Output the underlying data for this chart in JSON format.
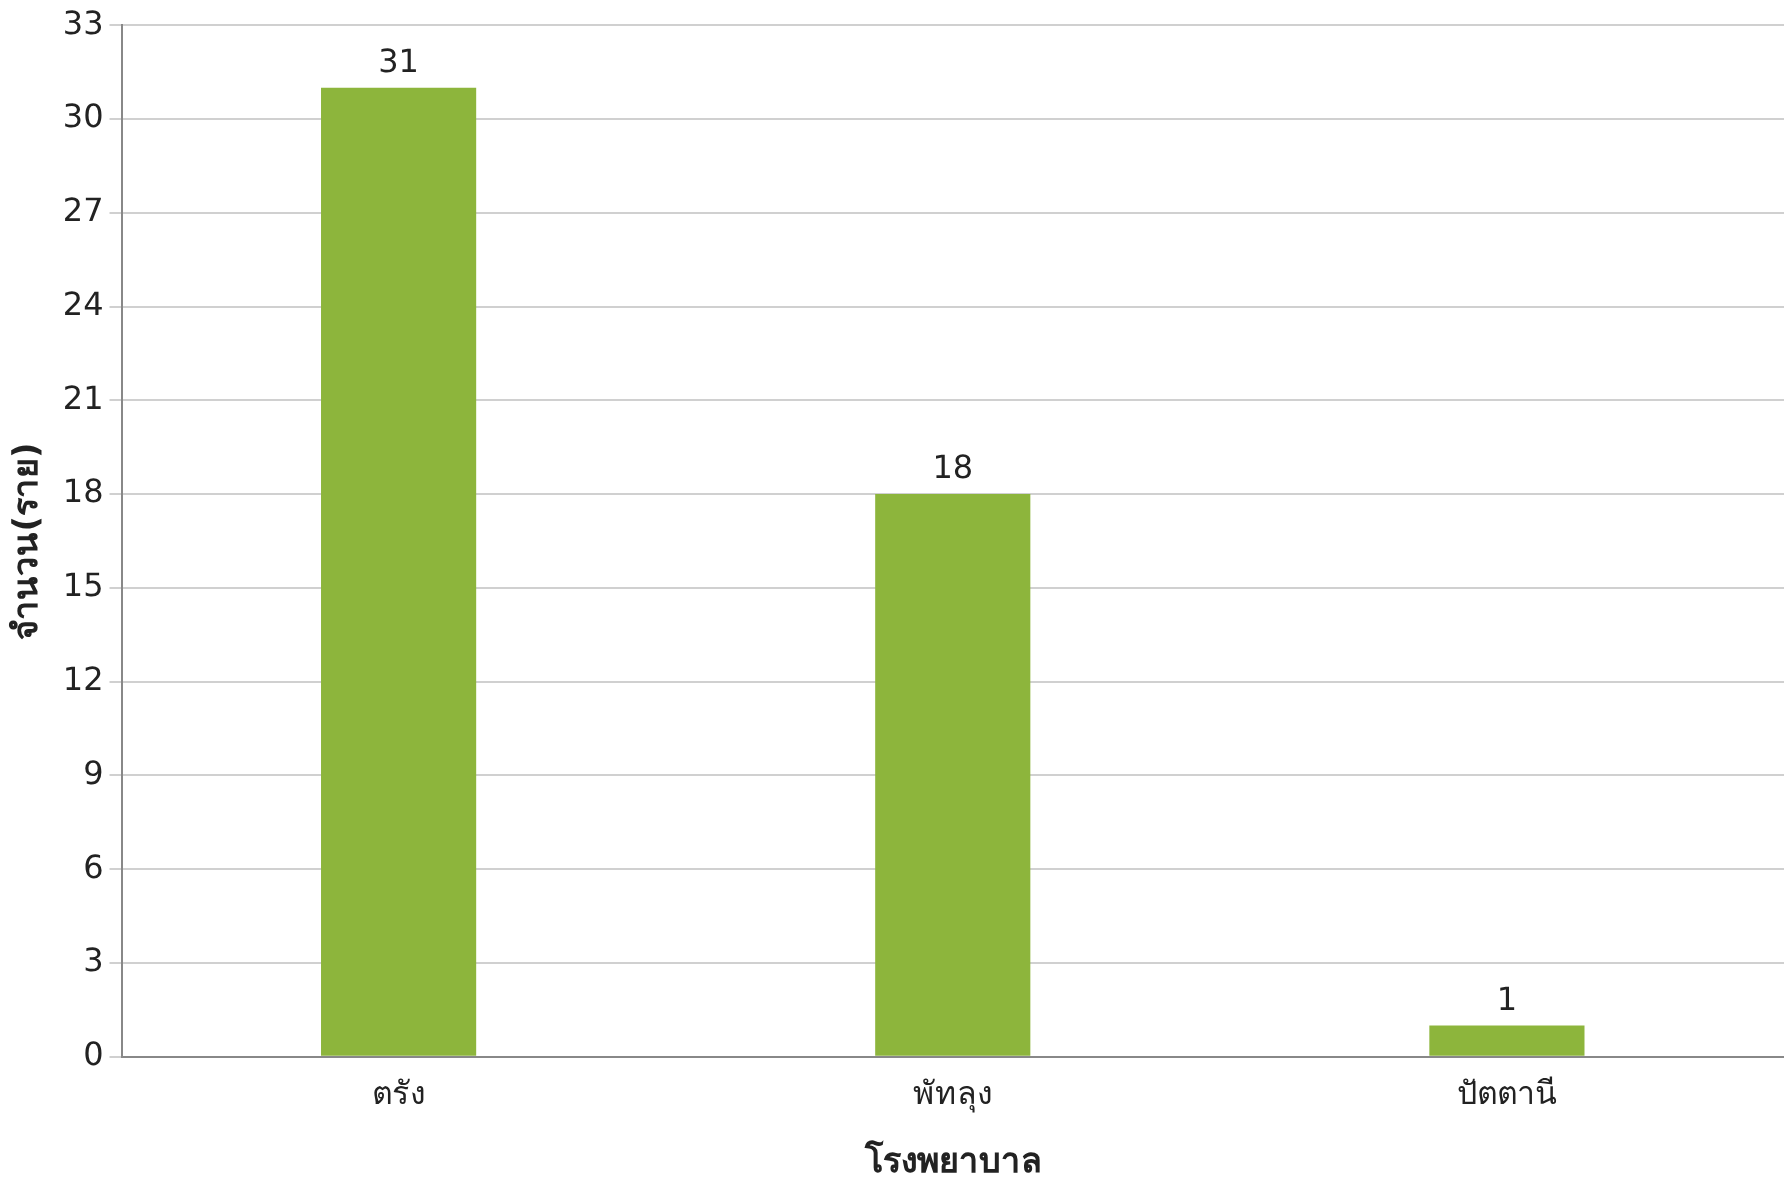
{
  "chart_data": {
    "type": "bar",
    "xlabel": "โรงพยาบาล",
    "ylabel": "จำนวน(ราย)",
    "categories": [
      "ตรัง",
      "พัทลุง",
      "ปัตตานี"
    ],
    "values": [
      31,
      18,
      1
    ],
    "color": "#8db53c",
    "ylim": [
      0,
      33
    ],
    "yticks": [
      0,
      3,
      6,
      9,
      12,
      15,
      18,
      21,
      24,
      27,
      30,
      33
    ],
    "grid": "y",
    "data_labels": true,
    "legend": false
  }
}
